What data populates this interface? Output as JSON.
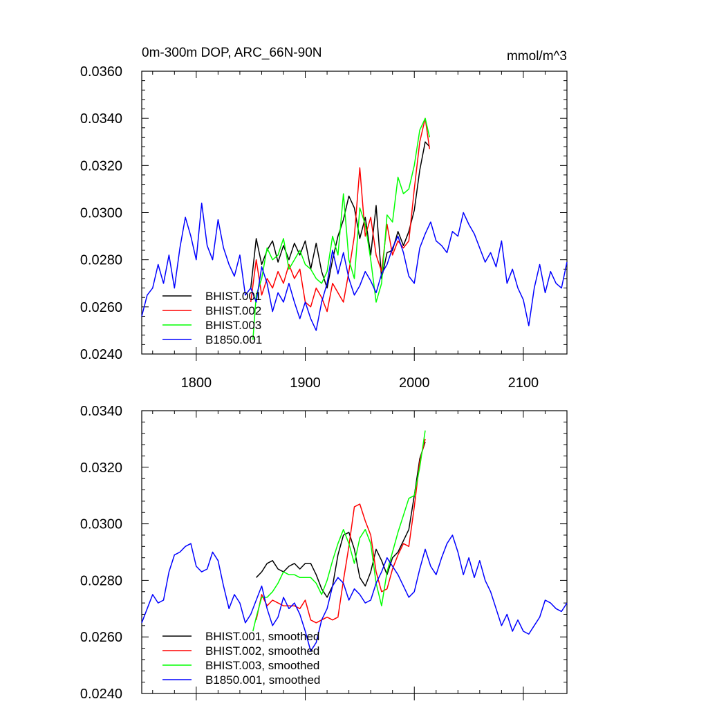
{
  "chart_data": [
    {
      "type": "line",
      "title": "0m-300m DOP, ARC_66N-90N",
      "units": "mmol/m^3",
      "xlim": [
        1750,
        2140
      ],
      "ylim": [
        0.024,
        0.036
      ],
      "xticks": [
        1800,
        1900,
        2000,
        2100
      ],
      "xtick_labels": [
        "1800",
        "1900",
        "2000",
        "2100"
      ],
      "yticks": [
        0.024,
        0.026,
        0.028,
        0.03,
        0.032,
        0.034,
        0.036
      ],
      "ytick_labels": [
        "0.0240",
        "0.0260",
        "0.0280",
        "0.0300",
        "0.0320",
        "0.0340",
        "0.0360"
      ],
      "legend_position": "bottom-left",
      "series": [
        {
          "name": "BHIST.001",
          "color": "#000000",
          "x": [
            1850,
            1855,
            1860,
            1865,
            1870,
            1875,
            1880,
            1885,
            1890,
            1895,
            1900,
            1905,
            1910,
            1915,
            1920,
            1925,
            1930,
            1935,
            1940,
            1945,
            1950,
            1955,
            1960,
            1965,
            1970,
            1975,
            1980,
            1985,
            1990,
            1995,
            2000,
            2005,
            2010,
            2014
          ],
          "y": [
            0.0268,
            0.0289,
            0.0278,
            0.0284,
            0.0288,
            0.0279,
            0.0286,
            0.028,
            0.0287,
            0.0282,
            0.0288,
            0.0276,
            0.0287,
            0.0275,
            0.0268,
            0.028,
            0.029,
            0.0297,
            0.0307,
            0.0302,
            0.0289,
            0.0298,
            0.0282,
            0.0303,
            0.0272,
            0.0283,
            0.0284,
            0.0292,
            0.0286,
            0.0292,
            0.0301,
            0.0318,
            0.033,
            0.0328
          ]
        },
        {
          "name": "BHIST.002",
          "color": "#ff0000",
          "x": [
            1850,
            1855,
            1860,
            1865,
            1870,
            1875,
            1880,
            1885,
            1890,
            1895,
            1900,
            1905,
            1910,
            1915,
            1920,
            1925,
            1930,
            1935,
            1940,
            1945,
            1950,
            1955,
            1960,
            1965,
            1970,
            1975,
            1980,
            1985,
            1990,
            1995,
            2000,
            2005,
            2010,
            2014
          ],
          "y": [
            0.0262,
            0.028,
            0.0265,
            0.0272,
            0.0268,
            0.0275,
            0.027,
            0.0278,
            0.0272,
            0.0276,
            0.0262,
            0.026,
            0.0268,
            0.0264,
            0.0258,
            0.027,
            0.0266,
            0.0262,
            0.0275,
            0.029,
            0.0319,
            0.029,
            0.0298,
            0.0282,
            0.0275,
            0.0295,
            0.0282,
            0.0288,
            0.0285,
            0.0288,
            0.031,
            0.033,
            0.034,
            0.0327
          ]
        },
        {
          "name": "BHIST.003",
          "color": "#00ff00",
          "x": [
            1852,
            1855,
            1860,
            1865,
            1870,
            1875,
            1880,
            1885,
            1890,
            1895,
            1900,
            1905,
            1910,
            1915,
            1920,
            1925,
            1930,
            1935,
            1940,
            1945,
            1950,
            1955,
            1960,
            1965,
            1970,
            1975,
            1980,
            1985,
            1990,
            1995,
            2000,
            2005,
            2010,
            2014
          ],
          "y": [
            0.0246,
            0.0265,
            0.0272,
            0.0285,
            0.028,
            0.0282,
            0.0289,
            0.0276,
            0.028,
            0.0284,
            0.0278,
            0.0276,
            0.0272,
            0.027,
            0.0275,
            0.029,
            0.0282,
            0.0308,
            0.028,
            0.0272,
            0.0302,
            0.0295,
            0.028,
            0.0262,
            0.027,
            0.0299,
            0.0296,
            0.0315,
            0.0308,
            0.031,
            0.032,
            0.0335,
            0.034,
            0.0332
          ]
        },
        {
          "name": "B1850.001",
          "color": "#0000ff",
          "x": [
            1750,
            1755,
            1760,
            1765,
            1770,
            1775,
            1780,
            1785,
            1790,
            1795,
            1800,
            1805,
            1810,
            1815,
            1820,
            1825,
            1830,
            1835,
            1840,
            1845,
            1850,
            1855,
            1860,
            1865,
            1870,
            1875,
            1880,
            1885,
            1890,
            1895,
            1900,
            1905,
            1910,
            1915,
            1920,
            1925,
            1930,
            1935,
            1940,
            1945,
            1950,
            1955,
            1960,
            1965,
            1970,
            1975,
            1980,
            1985,
            1990,
            1995,
            2000,
            2005,
            2010,
            2015,
            2020,
            2025,
            2030,
            2035,
            2040,
            2045,
            2050,
            2055,
            2060,
            2065,
            2070,
            2075,
            2080,
            2085,
            2090,
            2095,
            2100,
            2105,
            2110,
            2115,
            2120,
            2125,
            2130,
            2135,
            2140
          ],
          "y": [
            0.0256,
            0.0265,
            0.0268,
            0.0278,
            0.027,
            0.0282,
            0.0268,
            0.0285,
            0.0298,
            0.029,
            0.028,
            0.0304,
            0.0286,
            0.028,
            0.0297,
            0.0285,
            0.0278,
            0.0273,
            0.0282,
            0.0265,
            0.0268,
            0.0262,
            0.0277,
            0.027,
            0.0258,
            0.0266,
            0.0262,
            0.027,
            0.0262,
            0.0255,
            0.0262,
            0.0255,
            0.025,
            0.0262,
            0.027,
            0.0284,
            0.0274,
            0.0283,
            0.0272,
            0.0265,
            0.0269,
            0.0275,
            0.0271,
            0.0266,
            0.0274,
            0.0278,
            0.0285,
            0.029,
            0.0283,
            0.0273,
            0.027,
            0.0285,
            0.0291,
            0.0296,
            0.0288,
            0.0286,
            0.0283,
            0.0292,
            0.029,
            0.03,
            0.0295,
            0.0291,
            0.0285,
            0.0279,
            0.0283,
            0.0277,
            0.0288,
            0.027,
            0.0276,
            0.0268,
            0.0263,
            0.0252,
            0.0268,
            0.0278,
            0.0266,
            0.0275,
            0.027,
            0.0268,
            0.0279
          ]
        }
      ]
    },
    {
      "type": "line",
      "title": "",
      "xlim": [
        1750,
        2140
      ],
      "ylim": [
        0.024,
        0.034
      ],
      "xticks": [
        1800,
        1900,
        2000,
        2100
      ],
      "xtick_labels": [],
      "yticks": [
        0.024,
        0.026,
        0.028,
        0.03,
        0.032,
        0.034
      ],
      "ytick_labels": [
        "0.0240",
        "0.0260",
        "0.0280",
        "0.0300",
        "0.0320",
        "0.0340"
      ],
      "legend_position": "bottom-left",
      "series": [
        {
          "name": "BHIST.001, smoothed",
          "color": "#000000",
          "x": [
            1855,
            1860,
            1865,
            1870,
            1875,
            1880,
            1885,
            1890,
            1895,
            1900,
            1905,
            1910,
            1915,
            1920,
            1925,
            1930,
            1935,
            1940,
            1945,
            1950,
            1955,
            1960,
            1965,
            1970,
            1975,
            1980,
            1985,
            1990,
            1995,
            2000,
            2005,
            2010
          ],
          "y": [
            0.0281,
            0.0283,
            0.0286,
            0.0287,
            0.0284,
            0.0283,
            0.0285,
            0.0286,
            0.0284,
            0.0286,
            0.0286,
            0.0282,
            0.0277,
            0.0274,
            0.0278,
            0.0289,
            0.0296,
            0.0297,
            0.0291,
            0.0281,
            0.0278,
            0.0283,
            0.0291,
            0.0287,
            0.0282,
            0.0288,
            0.029,
            0.0294,
            0.0298,
            0.031,
            0.0323,
            0.0329
          ]
        },
        {
          "name": "BHIST.002, smoothed",
          "color": "#ff0000",
          "x": [
            1855,
            1860,
            1865,
            1870,
            1875,
            1880,
            1885,
            1890,
            1895,
            1900,
            1905,
            1910,
            1915,
            1920,
            1925,
            1930,
            1935,
            1940,
            1945,
            1950,
            1955,
            1960,
            1965,
            1970,
            1975,
            1980,
            1985,
            1990,
            1995,
            2000,
            2005,
            2010
          ],
          "y": [
            0.0266,
            0.0275,
            0.0271,
            0.0273,
            0.0272,
            0.0271,
            0.0271,
            0.0271,
            0.027,
            0.0273,
            0.0266,
            0.0265,
            0.0266,
            0.0267,
            0.0266,
            0.0267,
            0.028,
            0.0292,
            0.0306,
            0.0307,
            0.0301,
            0.0296,
            0.0283,
            0.0276,
            0.0277,
            0.0284,
            0.0289,
            0.0293,
            0.0292,
            0.0306,
            0.0322,
            0.033
          ]
        },
        {
          "name": "BHIST.003, smoothed",
          "color": "#00ff00",
          "x": [
            1852,
            1855,
            1860,
            1865,
            1870,
            1875,
            1880,
            1885,
            1890,
            1895,
            1900,
            1905,
            1910,
            1915,
            1920,
            1925,
            1930,
            1935,
            1940,
            1945,
            1950,
            1955,
            1960,
            1965,
            1970,
            1975,
            1980,
            1985,
            1990,
            1995,
            2000,
            2005,
            2010
          ],
          "y": [
            0.0262,
            0.0267,
            0.0274,
            0.0274,
            0.0276,
            0.0279,
            0.0283,
            0.0282,
            0.0282,
            0.0281,
            0.0281,
            0.0281,
            0.0279,
            0.0275,
            0.028,
            0.0287,
            0.0293,
            0.0298,
            0.0293,
            0.0286,
            0.0295,
            0.0298,
            0.0293,
            0.0279,
            0.0271,
            0.0283,
            0.029,
            0.0297,
            0.0303,
            0.0309,
            0.031,
            0.032,
            0.0333
          ]
        },
        {
          "name": "B1850.001, smoothed",
          "color": "#0000ff",
          "x": [
            1750,
            1755,
            1760,
            1765,
            1770,
            1775,
            1780,
            1785,
            1790,
            1795,
            1800,
            1805,
            1810,
            1815,
            1820,
            1825,
            1830,
            1835,
            1840,
            1845,
            1850,
            1855,
            1860,
            1865,
            1870,
            1875,
            1880,
            1885,
            1890,
            1895,
            1900,
            1905,
            1910,
            1915,
            1920,
            1925,
            1930,
            1935,
            1940,
            1945,
            1950,
            1955,
            1960,
            1965,
            1970,
            1975,
            1980,
            1985,
            1990,
            1995,
            2000,
            2005,
            2010,
            2015,
            2020,
            2025,
            2030,
            2035,
            2040,
            2045,
            2050,
            2055,
            2060,
            2065,
            2070,
            2075,
            2080,
            2085,
            2090,
            2095,
            2100,
            2105,
            2110,
            2115,
            2120,
            2125,
            2130,
            2135,
            2140
          ],
          "y": [
            0.0265,
            0.027,
            0.0275,
            0.0272,
            0.0273,
            0.0283,
            0.0289,
            0.029,
            0.0292,
            0.0293,
            0.0285,
            0.0283,
            0.0284,
            0.029,
            0.0287,
            0.0278,
            0.027,
            0.0275,
            0.0272,
            0.0265,
            0.0268,
            0.0273,
            0.0278,
            0.027,
            0.0264,
            0.0267,
            0.0274,
            0.027,
            0.0272,
            0.0268,
            0.0262,
            0.0255,
            0.0258,
            0.0266,
            0.027,
            0.0278,
            0.0281,
            0.0279,
            0.0273,
            0.0277,
            0.0275,
            0.0272,
            0.0273,
            0.0279,
            0.0283,
            0.0288,
            0.0285,
            0.0282,
            0.0278,
            0.0274,
            0.0276,
            0.0284,
            0.0291,
            0.0285,
            0.0282,
            0.0288,
            0.0293,
            0.0296,
            0.029,
            0.0282,
            0.0288,
            0.0281,
            0.0287,
            0.028,
            0.0276,
            0.027,
            0.0264,
            0.0268,
            0.0262,
            0.0266,
            0.0262,
            0.0261,
            0.0264,
            0.0267,
            0.0273,
            0.0272,
            0.027,
            0.0269,
            0.0272
          ]
        }
      ]
    }
  ]
}
